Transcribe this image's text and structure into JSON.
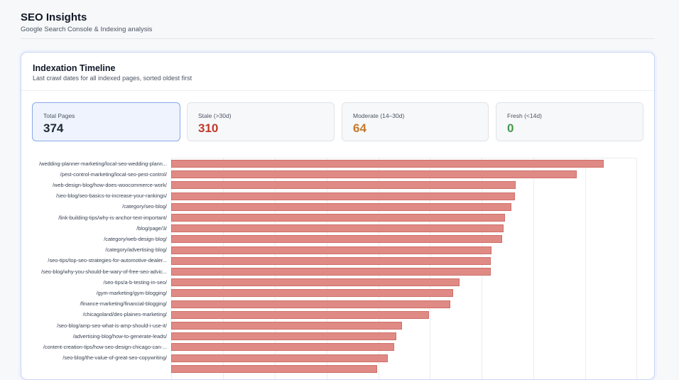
{
  "header": {
    "title": "SEO Insights",
    "subtitle": "Google Search Console & Indexing analysis"
  },
  "panel": {
    "title": "Indexation Timeline",
    "subtitle": "Last crawl dates for all indexed pages, sorted oldest first"
  },
  "stats": [
    {
      "label": "Total Pages",
      "value": "374",
      "color": "#1f2937"
    },
    {
      "label": "Stale (>30d)",
      "value": "310",
      "color": "#c0392b"
    },
    {
      "label": "Moderate (14–30d)",
      "value": "64",
      "color": "#c27b2c"
    },
    {
      "label": "Fresh (<14d)",
      "value": "0",
      "color": "#3f9b4a"
    }
  ],
  "colors": {
    "bar_fill": "#e08a85",
    "accent": "#8aa8e6"
  },
  "chart_data": {
    "type": "bar",
    "orientation": "horizontal",
    "categories": [
      "/wedding-planner-marketing/local-seo-wedding-plann...",
      "/pest-control-marketing/local-seo-pest-control/",
      "/web-design-blog/how-does-woocommerce-work/",
      "/seo-blog/seo-basics-to-increase-your-rankings/",
      "/category/seo-blog/",
      "/link-building-tips/why-is-anchor-text-important/",
      "/blog/page/3/",
      "/category/web-design-blog/",
      "/category/advertising-blog/",
      "/seo-tips/top-seo-strategies-for-automotive-dealer...",
      "/seo-blog/why-you-should-be-wary-of-free-seo-advic...",
      "/seo-tips/a-b-testing-in-seo/",
      "/gym-marketing/gym-blogging/",
      "/finance-marketing/financial-blogging/",
      "/chicagoland/des-plaines-marketing/",
      "/seo-blog/amp-seo-what-is-amp-should-i-use-it/",
      "/advertising-blog/how-to-generate-leads/",
      "/content-creation-tips/how-seo-design-chicago-can-...",
      "/seo-blog/the-value-of-great-seo-copywriting/",
      ""
    ],
    "values": [
      83.6,
      78.3,
      66.6,
      66.4,
      65.7,
      64.5,
      64.2,
      63.9,
      61.9,
      61.8,
      61.7,
      55.7,
      54.5,
      53.9,
      49.8,
      44.6,
      43.5,
      43.1,
      41.9,
      39.8
    ],
    "xlim": [
      0,
      90
    ],
    "grid": true
  }
}
